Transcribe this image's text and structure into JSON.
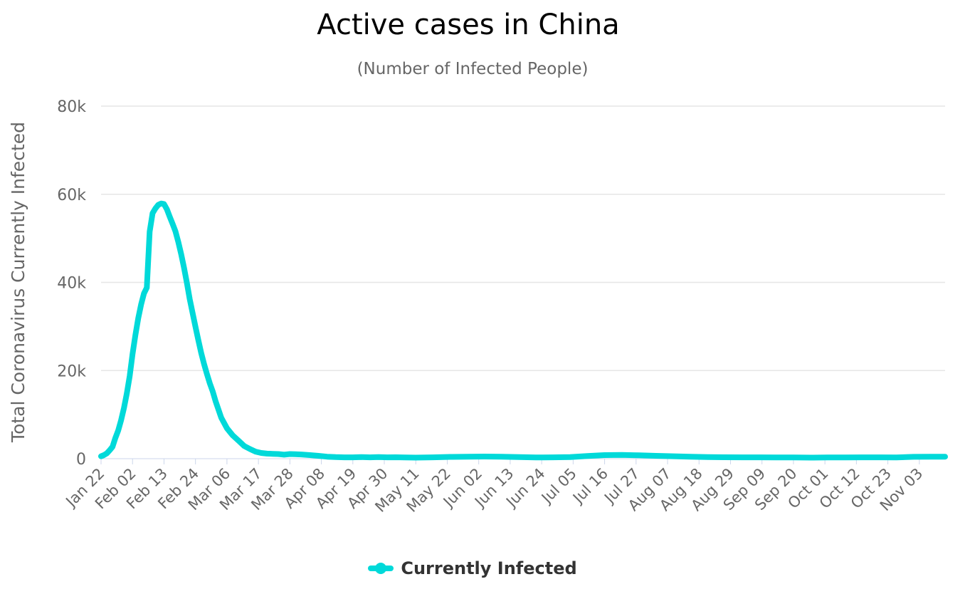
{
  "chart_data": {
    "type": "line",
    "title": "Active cases in China",
    "subtitle": "(Number of Infected People)",
    "xlabel": "",
    "ylabel": "Total Coronavirus Currently Infected",
    "ylim": [
      0,
      80000
    ],
    "y_ticks": [
      0,
      20000,
      40000,
      60000,
      80000
    ],
    "y_tick_labels": [
      "0",
      "20k",
      "40k",
      "60k",
      "80k"
    ],
    "x_tick_labels": [
      "Jan 22",
      "Feb 02",
      "Feb 13",
      "Feb 24",
      "Mar 06",
      "Mar 17",
      "Mar 28",
      "Apr 08",
      "Apr 19",
      "Apr 30",
      "May 11",
      "May 22",
      "Jun 02",
      "Jun 13",
      "Jun 24",
      "Jul 05",
      "Jul 16",
      "Jul 27",
      "Aug 07",
      "Aug 18",
      "Aug 29",
      "Sep 09",
      "Sep 20",
      "Oct 01",
      "Oct 12",
      "Oct 23",
      "Nov 03"
    ],
    "x_tick_interval_days": 11,
    "x_range_days": [
      0,
      295
    ],
    "grid": true,
    "legend_position": "bottom-center",
    "color": "#00d9d9",
    "series": [
      {
        "name": "Currently Infected",
        "x": [
          0,
          1,
          2,
          3,
          4,
          5,
          6,
          7,
          8,
          9,
          10,
          11,
          12,
          13,
          14,
          15,
          16,
          17,
          18,
          19,
          20,
          21,
          22,
          23,
          24,
          25,
          26,
          27,
          28,
          29,
          30,
          31,
          32,
          33,
          34,
          35,
          36,
          37,
          38,
          39,
          40,
          42,
          44,
          46,
          48,
          50,
          52,
          54,
          56,
          58,
          60,
          62,
          64,
          66,
          68,
          70,
          73,
          76,
          79,
          82,
          85,
          86,
          88,
          91,
          94,
          97,
          100,
          103,
          106,
          110,
          116,
          122,
          128,
          134,
          140,
          146,
          152,
          158,
          164,
          170,
          176,
          182,
          188,
          194,
          200,
          206,
          212,
          218,
          224,
          230,
          236,
          242,
          248,
          254,
          260,
          266,
          272,
          278,
          284,
          290,
          295
        ],
        "values": [
          550,
          800,
          1200,
          1900,
          2700,
          4700,
          6400,
          8700,
          11500,
          14800,
          18700,
          23700,
          28000,
          31900,
          35000,
          37500,
          38800,
          51500,
          55700,
          56800,
          57600,
          57900,
          57800,
          56600,
          54900,
          53300,
          51600,
          49200,
          46400,
          43300,
          39900,
          36200,
          33000,
          29900,
          26900,
          24000,
          21500,
          19200,
          17100,
          15300,
          13100,
          9300,
          6900,
          5300,
          4100,
          2900,
          2200,
          1600,
          1300,
          1150,
          1100,
          1050,
          900,
          1050,
          1000,
          950,
          800,
          650,
          450,
          350,
          300,
          300,
          300,
          350,
          300,
          350,
          300,
          320,
          280,
          250,
          310,
          400,
          450,
          480,
          450,
          350,
          280,
          300,
          350,
          620,
          800,
          850,
          760,
          650,
          550,
          450,
          350,
          330,
          300,
          300,
          280,
          270,
          250,
          270,
          290,
          300,
          300,
          290,
          420,
          450,
          450
        ]
      }
    ]
  }
}
